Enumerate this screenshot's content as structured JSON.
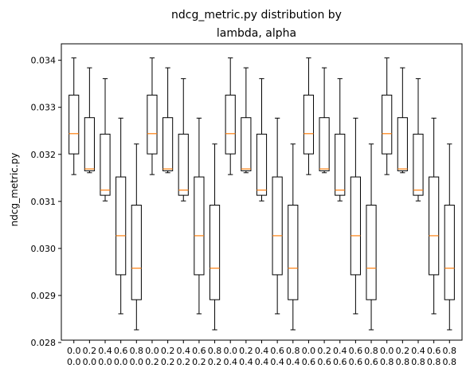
{
  "chart_data": {
    "type": "box",
    "title_lines": [
      "ndcg_metric.py distribution by",
      "lambda, alpha"
    ],
    "ylabel": "ndcg_metric.py",
    "ylim": [
      0.02805,
      0.03435
    ],
    "yticks": [
      "0.028",
      "0.029",
      "0.030",
      "0.031",
      "0.032",
      "0.033",
      "0.034"
    ],
    "x_tick_top": [
      "0.0",
      "0.2",
      "0.4",
      "0.6",
      "0.8",
      "0.0",
      "0.2",
      "0.4",
      "0.6",
      "0.8",
      "0.0",
      "0.2",
      "0.4",
      "0.6",
      "0.8",
      "0.0",
      "0.2",
      "0.4",
      "0.6",
      "0.8",
      "0.0",
      "0.2",
      "0.4",
      "0.6",
      "0.8"
    ],
    "x_tick_bottom": [
      "0.0",
      "0.0",
      "0.0",
      "0.0",
      "0.0",
      "0.2",
      "0.2",
      "0.2",
      "0.2",
      "0.2",
      "0.4",
      "0.4",
      "0.4",
      "0.4",
      "0.4",
      "0.6",
      "0.6",
      "0.6",
      "0.6",
      "0.6",
      "0.8",
      "0.8",
      "0.8",
      "0.8",
      "0.8"
    ],
    "boxes": [
      {
        "whislo": 0.03157,
        "q1": 0.03201,
        "med": 0.03244,
        "q3": 0.03326,
        "whishi": 0.03405
      },
      {
        "whislo": 0.03161,
        "q1": 0.03165,
        "med": 0.03169,
        "q3": 0.03278,
        "whishi": 0.03384
      },
      {
        "whislo": 0.03101,
        "q1": 0.03113,
        "med": 0.03124,
        "q3": 0.03243,
        "whishi": 0.03361
      },
      {
        "whislo": 0.02861,
        "q1": 0.02944,
        "med": 0.03027,
        "q3": 0.03152,
        "whishi": 0.03277
      },
      {
        "whislo": 0.02827,
        "q1": 0.02891,
        "med": 0.02958,
        "q3": 0.03092,
        "whishi": 0.03222
      },
      {
        "whislo": 0.03157,
        "q1": 0.03201,
        "med": 0.03244,
        "q3": 0.03326,
        "whishi": 0.03405
      },
      {
        "whislo": 0.03161,
        "q1": 0.03165,
        "med": 0.03169,
        "q3": 0.03278,
        "whishi": 0.03384
      },
      {
        "whislo": 0.03101,
        "q1": 0.03113,
        "med": 0.03124,
        "q3": 0.03243,
        "whishi": 0.03361
      },
      {
        "whislo": 0.02861,
        "q1": 0.02944,
        "med": 0.03027,
        "q3": 0.03152,
        "whishi": 0.03277
      },
      {
        "whislo": 0.02827,
        "q1": 0.02891,
        "med": 0.02958,
        "q3": 0.03092,
        "whishi": 0.03222
      },
      {
        "whislo": 0.03157,
        "q1": 0.03201,
        "med": 0.03244,
        "q3": 0.03326,
        "whishi": 0.03405
      },
      {
        "whislo": 0.03161,
        "q1": 0.03165,
        "med": 0.03169,
        "q3": 0.03278,
        "whishi": 0.03384
      },
      {
        "whislo": 0.03101,
        "q1": 0.03113,
        "med": 0.03124,
        "q3": 0.03243,
        "whishi": 0.03361
      },
      {
        "whislo": 0.02861,
        "q1": 0.02944,
        "med": 0.03027,
        "q3": 0.03152,
        "whishi": 0.03277
      },
      {
        "whislo": 0.02827,
        "q1": 0.02891,
        "med": 0.02958,
        "q3": 0.03092,
        "whishi": 0.03222
      },
      {
        "whislo": 0.03157,
        "q1": 0.03201,
        "med": 0.03244,
        "q3": 0.03326,
        "whishi": 0.03405
      },
      {
        "whislo": 0.03161,
        "q1": 0.03165,
        "med": 0.03169,
        "q3": 0.03278,
        "whishi": 0.03384
      },
      {
        "whislo": 0.03101,
        "q1": 0.03113,
        "med": 0.03124,
        "q3": 0.03243,
        "whishi": 0.03361
      },
      {
        "whislo": 0.02861,
        "q1": 0.02944,
        "med": 0.03027,
        "q3": 0.03152,
        "whishi": 0.03277
      },
      {
        "whislo": 0.02827,
        "q1": 0.02891,
        "med": 0.02958,
        "q3": 0.03092,
        "whishi": 0.03222
      },
      {
        "whislo": 0.03157,
        "q1": 0.03201,
        "med": 0.03244,
        "q3": 0.03326,
        "whishi": 0.03405
      },
      {
        "whislo": 0.03161,
        "q1": 0.03165,
        "med": 0.03169,
        "q3": 0.03278,
        "whishi": 0.03384
      },
      {
        "whislo": 0.03101,
        "q1": 0.03113,
        "med": 0.03124,
        "q3": 0.03243,
        "whishi": 0.03361
      },
      {
        "whislo": 0.02861,
        "q1": 0.02944,
        "med": 0.03027,
        "q3": 0.03152,
        "whishi": 0.03277
      },
      {
        "whislo": 0.02827,
        "q1": 0.02891,
        "med": 0.02958,
        "q3": 0.03092,
        "whishi": 0.03222
      }
    ],
    "colors": {
      "box": "#000000",
      "median": "#ff7f0e"
    },
    "grid": false
  }
}
